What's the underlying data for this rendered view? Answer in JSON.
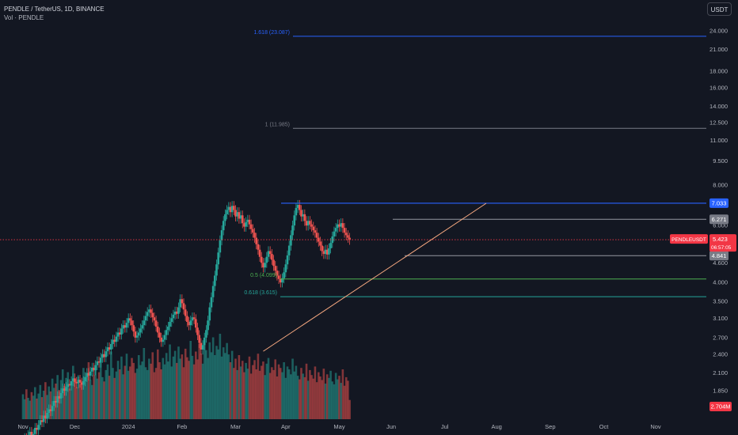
{
  "header": {
    "symbol_line": "PENDLE / TetherUS, 1D, BINANCE",
    "volume_line": "Vol · PENDLE"
  },
  "unit_button": "USDT",
  "colors": {
    "background": "#131722",
    "up": "#26a69a",
    "down": "#ef5350",
    "fib_1618": "#2962ff",
    "fib_1": "#787b86",
    "fib_05": "#4caf50",
    "fib_0618": "#26a69a",
    "resistance": "#2962ff",
    "trendline": "#f7a980",
    "current_price": "#f23645"
  },
  "chart_data": {
    "type": "candlestick",
    "y_scale": "log",
    "ylim": [
      1.6,
      29
    ],
    "y_ticks": [
      "24.000",
      "21.000",
      "18.000",
      "16.000",
      "14.000",
      "12.500",
      "11.000",
      "9.500",
      "8.000",
      "6.000",
      "4.600",
      "4.000",
      "3.500",
      "3.100",
      "2.700",
      "2.400",
      "2.100",
      "1.850"
    ],
    "x_ticks": [
      "Nov",
      "Dec",
      "2024",
      "Feb",
      "Mar",
      "Apr",
      "May",
      "Jun",
      "Jul",
      "Aug",
      "Sep",
      "Oct",
      "Nov"
    ],
    "fib_levels": [
      {
        "label": "1.618 (23.087)",
        "value": 23.087
      },
      {
        "label": "1 (11.985)",
        "value": 11.985
      },
      {
        "label": "0.5 (4.099)",
        "value": 4.099
      },
      {
        "label": "0.618 (3.615)",
        "value": 3.615
      }
    ],
    "price_tags": [
      {
        "label": "7.033",
        "value": 7.033,
        "role": "resistance"
      },
      {
        "label": "6.271",
        "value": 6.271,
        "role": "range-high"
      },
      {
        "label": "4.841",
        "value": 4.841,
        "role": "range-low"
      }
    ],
    "current_price": {
      "symbol": "PENDLEUSDT",
      "value": "5.423",
      "countdown": "06:57:05"
    },
    "volume_last": "2.704M",
    "trendline": {
      "from": {
        "date": "2024-03-19",
        "price": 2.45
      },
      "to": {
        "date": "2024-07-26",
        "price": 7.03
      }
    },
    "candles_close": [
      1.3,
      1.32,
      1.28,
      1.35,
      1.38,
      1.33,
      1.36,
      1.42,
      1.4,
      1.45,
      1.5,
      1.48,
      1.55,
      1.52,
      1.58,
      1.62,
      1.6,
      1.66,
      1.72,
      1.7,
      1.78,
      1.75,
      1.82,
      1.88,
      1.85,
      1.9,
      1.94,
      1.92,
      1.98,
      2.02,
      1.97,
      1.95,
      2.0,
      1.96,
      1.93,
      1.98,
      2.04,
      2.1,
      2.06,
      2.12,
      2.18,
      2.14,
      2.22,
      2.28,
      2.26,
      2.34,
      2.4,
      2.35,
      2.45,
      2.52,
      2.48,
      2.58,
      2.66,
      2.62,
      2.72,
      2.8,
      2.76,
      2.88,
      2.95,
      2.9,
      3.0,
      3.1,
      3.05,
      2.95,
      2.82,
      2.7,
      2.74,
      2.8,
      2.88,
      2.95,
      3.05,
      3.15,
      3.24,
      3.3,
      3.22,
      3.12,
      3.05,
      2.92,
      2.8,
      2.7,
      2.62,
      2.66,
      2.75,
      2.85,
      2.92,
      3.02,
      3.1,
      3.18,
      3.25,
      3.2,
      3.35,
      3.55,
      3.45,
      3.3,
      3.15,
      3.02,
      2.95,
      3.05,
      3.12,
      3.08,
      2.9,
      2.75,
      2.6,
      2.48,
      2.56,
      2.7,
      2.85,
      3.05,
      3.35,
      3.6,
      3.9,
      4.2,
      4.55,
      4.95,
      5.4,
      5.8,
      6.2,
      6.5,
      6.7,
      6.85,
      6.6,
      6.9,
      6.7,
      6.4,
      6.6,
      6.3,
      6.45,
      6.1,
      5.95,
      6.15,
      6.25,
      6.05,
      5.85,
      5.7,
      5.5,
      5.25,
      5.05,
      4.8,
      4.6,
      4.45,
      4.6,
      4.8,
      5.0,
      4.9,
      4.7,
      4.5,
      4.35,
      4.2,
      4.1,
      4.0,
      4.12,
      4.3,
      4.55,
      4.85,
      5.2,
      5.6,
      6.0,
      6.45,
      6.8,
      6.95,
      6.7,
      6.4,
      6.5,
      6.2,
      6.0,
      6.2,
      6.05,
      5.95,
      5.8,
      5.7,
      5.5,
      5.35,
      5.2,
      5.0,
      4.9,
      5.05,
      4.88,
      5.1,
      5.3,
      5.55,
      5.75,
      5.9,
      6.05,
      5.95,
      6.1,
      5.9,
      5.7,
      5.6,
      5.5,
      5.42
    ],
    "volume_bars": [
      0.35,
      0.28,
      0.42,
      0.3,
      0.26,
      0.38,
      0.33,
      0.45,
      0.29,
      0.36,
      0.48,
      0.31,
      0.4,
      0.52,
      0.34,
      0.46,
      0.39,
      0.57,
      0.44,
      0.5,
      0.62,
      0.41,
      0.55,
      0.7,
      0.47,
      0.58,
      0.66,
      0.43,
      0.51,
      0.75,
      0.56,
      0.45,
      0.6,
      0.49,
      0.53,
      0.72,
      0.58,
      0.64,
      0.8,
      0.55,
      0.48,
      0.62,
      0.71,
      0.57,
      0.66,
      0.84,
      0.59,
      0.53,
      0.69,
      0.77,
      0.61,
      0.95,
      0.72,
      0.58,
      0.67,
      0.82,
      0.7,
      0.88,
      0.63,
      0.75,
      0.92,
      0.68,
      0.74,
      0.86,
      0.79,
      0.65,
      0.71,
      0.9,
      0.76,
      0.81,
      1.0,
      0.73,
      0.69,
      0.85,
      0.78,
      0.94,
      0.66,
      0.72,
      0.98,
      0.8,
      0.7,
      0.86,
      0.77,
      0.93,
      0.81,
      1.05,
      0.74,
      0.88,
      0.96,
      0.79,
      1.02,
      0.85,
      0.91,
      0.73,
      0.99,
      0.87,
      0.82,
      1.1,
      0.89,
      0.77,
      0.95,
      0.84,
      1.06,
      0.92,
      0.78,
      1.12,
      0.97,
      0.86,
      1.08,
      0.94,
      1.15,
      0.9,
      1.03,
      0.98,
      1.2,
      0.88,
      1.01,
      0.93,
      1.07,
      0.91,
      0.8,
      0.96,
      0.72,
      0.85,
      0.69,
      0.9,
      0.74,
      0.82,
      0.66,
      0.79,
      0.71,
      0.88,
      0.64,
      0.76,
      0.83,
      0.7,
      0.92,
      0.68,
      0.75,
      0.81,
      0.62,
      0.78,
      0.86,
      0.65,
      0.73,
      0.69,
      0.84,
      0.6,
      0.77,
      0.72,
      0.66,
      0.8,
      0.58,
      0.74,
      0.7,
      0.63,
      0.85,
      0.67,
      0.75,
      0.61,
      0.56,
      0.72,
      0.64,
      0.59,
      0.78,
      0.54,
      0.69,
      0.62,
      0.57,
      0.74,
      0.52,
      0.66,
      0.6,
      0.55,
      0.71,
      0.5,
      0.63,
      0.58,
      0.68,
      0.53,
      0.49,
      0.65,
      0.56,
      0.61,
      0.51,
      0.7,
      0.47,
      0.59,
      0.54,
      0.27
    ]
  }
}
